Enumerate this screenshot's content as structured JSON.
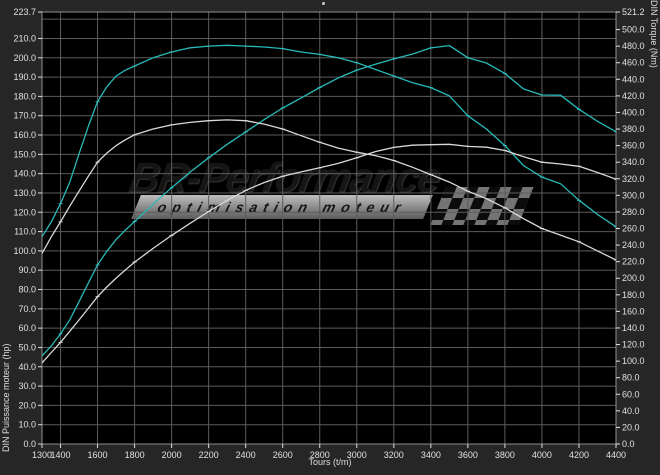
{
  "watermark": {
    "brand": "BR-Performance",
    "tagline": "optimisation moteur"
  },
  "colors": {
    "background": "#262626",
    "plot_background": "#000000",
    "grid": "#5c5c5c",
    "border": "#8f8f8f",
    "tick_text": "#e0e0e0",
    "tuned": "#28b9b9",
    "stock": "#d9d9d9"
  },
  "chart_data": {
    "type": "line",
    "title": "",
    "xlabel": "Tours (t/m)",
    "ylabel_left": "DIN Puissance moteur (hp)",
    "ylabel_right": "DIN Torque (Nm)",
    "x_range": [
      1300,
      4400
    ],
    "y_left_range": [
      0,
      223.7
    ],
    "y_right_range": [
      0,
      521.2
    ],
    "grid": true,
    "grid_x_step_rpm": 200,
    "grid_y_step_left": 10,
    "legend_position": "none",
    "x_ticks": [
      1300,
      1400,
      1600,
      1800,
      2000,
      2200,
      2400,
      2600,
      2800,
      3000,
      3200,
      3400,
      3600,
      3800,
      4000,
      4200,
      4400
    ],
    "y_left_ticks": [
      "223.7",
      "210.0",
      "200.0",
      "190.0",
      "180.0",
      "170.0",
      "160.0",
      "150.0",
      "140.0",
      "130.0",
      "120.0",
      "110.0",
      "100.0",
      "90.0",
      "80.0",
      "70.0",
      "60.0",
      "50.0",
      "40.0",
      "30.0",
      "20.0",
      "10.0",
      "0.0"
    ],
    "y_right_ticks": [
      "521.2",
      "500.0",
      "480.0",
      "460.0",
      "440.0",
      "420.0",
      "400.0",
      "380.0",
      "360.0",
      "340.0",
      "320.0",
      "300.0",
      "280.0",
      "260.0",
      "240.0",
      "220.0",
      "200.0",
      "180.0",
      "160.0",
      "140.0",
      "120.0",
      "100.0",
      "80.0",
      "60.0",
      "40.0",
      "20.0",
      "0.0"
    ],
    "series": [
      {
        "name": "torque-tuned",
        "axis": "right",
        "unit": "Nm",
        "color": "#28b9b9",
        "peak": {
          "rpm": 2300,
          "value": 481
        },
        "points": [
          [
            1300,
            250
          ],
          [
            1350,
            268
          ],
          [
            1400,
            290
          ],
          [
            1450,
            316
          ],
          [
            1500,
            350
          ],
          [
            1550,
            383
          ],
          [
            1600,
            413
          ],
          [
            1650,
            431
          ],
          [
            1700,
            444
          ],
          [
            1750,
            451
          ],
          [
            1800,
            456
          ],
          [
            1900,
            466
          ],
          [
            2000,
            473
          ],
          [
            2100,
            478
          ],
          [
            2200,
            480
          ],
          [
            2300,
            481
          ],
          [
            2400,
            480
          ],
          [
            2500,
            479
          ],
          [
            2600,
            477
          ],
          [
            2700,
            473
          ],
          [
            2800,
            470
          ],
          [
            2900,
            466
          ],
          [
            3000,
            460
          ],
          [
            3100,
            452
          ],
          [
            3200,
            444
          ],
          [
            3300,
            436
          ],
          [
            3400,
            430
          ],
          [
            3500,
            420
          ],
          [
            3600,
            396
          ],
          [
            3700,
            380
          ],
          [
            3800,
            360
          ],
          [
            3900,
            336
          ],
          [
            4000,
            322
          ],
          [
            4100,
            314
          ],
          [
            4200,
            294
          ],
          [
            4300,
            277
          ],
          [
            4400,
            262
          ]
        ]
      },
      {
        "name": "power-tuned",
        "axis": "left",
        "unit": "hp",
        "color": "#28b9b9",
        "peak": {
          "rpm": 3500,
          "value": 206.3
        },
        "points": [
          [
            1300,
            45.6
          ],
          [
            1350,
            50.8
          ],
          [
            1400,
            57.0
          ],
          [
            1450,
            64.3
          ],
          [
            1500,
            73.7
          ],
          [
            1550,
            83.3
          ],
          [
            1600,
            92.7
          ],
          [
            1650,
            99.8
          ],
          [
            1700,
            105.9
          ],
          [
            1750,
            110.7
          ],
          [
            1800,
            115.2
          ],
          [
            1900,
            124.2
          ],
          [
            2000,
            132.7
          ],
          [
            2100,
            140.8
          ],
          [
            2200,
            148.2
          ],
          [
            2300,
            155.2
          ],
          [
            2400,
            161.6
          ],
          [
            2500,
            168.0
          ],
          [
            2600,
            174.0
          ],
          [
            2700,
            179.2
          ],
          [
            2800,
            184.6
          ],
          [
            2900,
            189.6
          ],
          [
            3000,
            193.6
          ],
          [
            3100,
            196.6
          ],
          [
            3200,
            199.4
          ],
          [
            3300,
            201.9
          ],
          [
            3400,
            205.1
          ],
          [
            3500,
            206.3
          ],
          [
            3600,
            200.0
          ],
          [
            3700,
            197.3
          ],
          [
            3800,
            191.9
          ],
          [
            3900,
            183.9
          ],
          [
            4000,
            180.7
          ],
          [
            4100,
            180.6
          ],
          [
            4200,
            173.3
          ],
          [
            4300,
            167.1
          ],
          [
            4400,
            161.7
          ]
        ]
      },
      {
        "name": "torque-stock",
        "axis": "right",
        "unit": "Nm",
        "color": "#d9d9d9",
        "peak": {
          "rpm": 2300,
          "value": 391
        },
        "points": [
          [
            1300,
            230
          ],
          [
            1350,
            250
          ],
          [
            1400,
            268
          ],
          [
            1450,
            287
          ],
          [
            1500,
            305
          ],
          [
            1550,
            323
          ],
          [
            1600,
            340
          ],
          [
            1650,
            351
          ],
          [
            1700,
            360
          ],
          [
            1750,
            367
          ],
          [
            1800,
            373
          ],
          [
            1900,
            380
          ],
          [
            2000,
            385
          ],
          [
            2100,
            388
          ],
          [
            2200,
            390
          ],
          [
            2300,
            391
          ],
          [
            2400,
            390
          ],
          [
            2500,
            386
          ],
          [
            2600,
            380
          ],
          [
            2700,
            372
          ],
          [
            2800,
            364
          ],
          [
            2900,
            357
          ],
          [
            3000,
            352
          ],
          [
            3100,
            348
          ],
          [
            3200,
            342
          ],
          [
            3300,
            334
          ],
          [
            3400,
            325
          ],
          [
            3500,
            316
          ],
          [
            3600,
            305
          ],
          [
            3700,
            296
          ],
          [
            3800,
            285
          ],
          [
            3900,
            272
          ],
          [
            4000,
            260
          ],
          [
            4100,
            252
          ],
          [
            4200,
            244
          ],
          [
            4300,
            233
          ],
          [
            4400,
            222
          ]
        ]
      },
      {
        "name": "power-stock",
        "axis": "left",
        "unit": "hp",
        "color": "#d9d9d9",
        "peak": {
          "rpm": 3500,
          "value": 155.2
        },
        "points": [
          [
            1300,
            42.0
          ],
          [
            1350,
            47.4
          ],
          [
            1400,
            52.6
          ],
          [
            1450,
            58.4
          ],
          [
            1500,
            64.2
          ],
          [
            1550,
            70.2
          ],
          [
            1600,
            76.3
          ],
          [
            1650,
            81.3
          ],
          [
            1700,
            85.9
          ],
          [
            1750,
            90.1
          ],
          [
            1800,
            94.2
          ],
          [
            1900,
            101.3
          ],
          [
            2000,
            108.0
          ],
          [
            2100,
            114.3
          ],
          [
            2200,
            120.4
          ],
          [
            2300,
            126.2
          ],
          [
            2400,
            131.3
          ],
          [
            2500,
            135.4
          ],
          [
            2600,
            138.6
          ],
          [
            2700,
            140.9
          ],
          [
            2800,
            143.0
          ],
          [
            2900,
            145.3
          ],
          [
            3000,
            148.2
          ],
          [
            3100,
            151.4
          ],
          [
            3200,
            153.6
          ],
          [
            3300,
            154.7
          ],
          [
            3400,
            155.0
          ],
          [
            3500,
            155.2
          ],
          [
            3600,
            154.1
          ],
          [
            3700,
            153.7
          ],
          [
            3800,
            152.0
          ],
          [
            3900,
            148.8
          ],
          [
            4000,
            145.9
          ],
          [
            4100,
            145.0
          ],
          [
            4200,
            143.8
          ],
          [
            4300,
            140.6
          ],
          [
            4400,
            137.1
          ]
        ]
      }
    ]
  }
}
